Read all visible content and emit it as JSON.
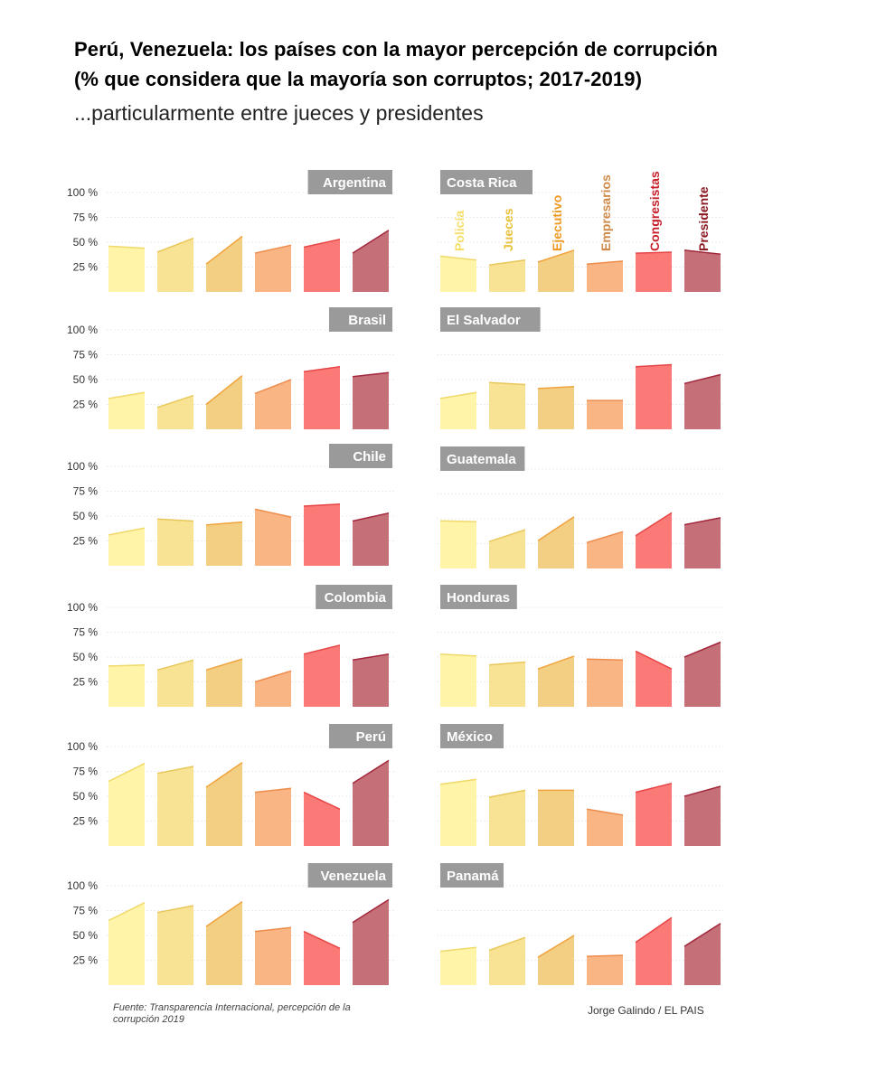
{
  "header": {
    "title_line1": "Perú, Venezuela: los países con la mayor percepción de corrupción",
    "title_line2": "(% que considera que la mayoría son corruptos; 2017-2019)",
    "subtitle": "...particularmente entre jueces y presidentes"
  },
  "footer": {
    "source_line1": "Fuente: Transparencia Internacional, percepción de la",
    "source_line2": "corrupción 2019",
    "credit": "Jorge Galindo / EL PAIS"
  },
  "colors": {
    "Policía": "#fff3a0",
    "Jueces": "#f7e08a",
    "Ejecutivo": "#f2cb78",
    "Empresarios": "#f9b07a",
    "Congresistas": "#fb6e6a",
    "Presidente": "#c0636e"
  },
  "line_colors": {
    "Policía": "#f0d96a",
    "Jueces": "#e8c75a",
    "Ejecutivo": "#f0a23c",
    "Empresarios": "#ee8c4c",
    "Congresistas": "#e64646",
    "Presidente": "#a2283c"
  },
  "label_colors": {
    "Policía": "#f5df6a",
    "Jueces": "#e9c23c",
    "Ejecutivo": "#ee9a22",
    "Empresarios": "#cf8a48",
    "Congresistas": "#c8202a",
    "Presidente": "#8c1a22"
  },
  "chart_data": {
    "type": "area",
    "title": "Perú, Venezuela: los países con la mayor percepción de corrupción (% que considera que la mayoría son corruptos; 2017-2019)",
    "x": [
      "2017",
      "2019"
    ],
    "ylim": [
      0,
      100
    ],
    "yticks": [
      "100 %",
      "75 %",
      "50 %",
      "25 %"
    ],
    "categories": [
      "Policía",
      "Jueces",
      "Ejecutivo",
      "Empresarios",
      "Congresistas",
      "Presidente"
    ],
    "countries": [
      {
        "name": "Argentina",
        "col": 0,
        "row": 0,
        "values": [
          [
            46,
            44
          ],
          [
            40,
            54
          ],
          [
            28,
            56
          ],
          [
            39,
            47
          ],
          [
            45,
            53
          ],
          [
            39,
            62
          ]
        ]
      },
      {
        "name": "Costa Rica",
        "col": 1,
        "row": 0,
        "values": [
          [
            36,
            32
          ],
          [
            27,
            32
          ],
          [
            30,
            42
          ],
          [
            28,
            31
          ],
          [
            39,
            40
          ],
          [
            42,
            38
          ]
        ]
      },
      {
        "name": "Brasil",
        "col": 0,
        "row": 1,
        "values": [
          [
            31,
            37
          ],
          [
            22,
            34
          ],
          [
            25,
            54
          ],
          [
            36,
            50
          ],
          [
            58,
            63
          ],
          [
            53,
            57
          ]
        ]
      },
      {
        "name": "El Salvador",
        "col": 1,
        "row": 1,
        "values": [
          [
            31,
            37
          ],
          [
            47,
            45
          ],
          [
            41,
            43
          ],
          [
            29,
            29
          ],
          [
            63,
            65
          ],
          [
            46,
            55
          ]
        ]
      },
      {
        "name": "Chile",
        "col": 0,
        "row": 2,
        "values": [
          [
            31,
            38
          ],
          [
            47,
            45
          ],
          [
            41,
            44
          ],
          [
            57,
            49
          ],
          [
            60,
            62
          ],
          [
            45,
            53
          ]
        ]
      },
      {
        "name": "Guatemala",
        "col": 1,
        "row": 2,
        "values": [
          [
            48,
            47
          ],
          [
            27,
            39
          ],
          [
            28,
            52
          ],
          [
            26,
            37
          ],
          [
            33,
            56
          ],
          [
            44,
            51
          ]
        ]
      },
      {
        "name": "Colombia",
        "col": 0,
        "row": 3,
        "values": [
          [
            41,
            42
          ],
          [
            37,
            47
          ],
          [
            37,
            48
          ],
          [
            25,
            36
          ],
          [
            53,
            62
          ],
          [
            47,
            53
          ]
        ]
      },
      {
        "name": "Honduras",
        "col": 1,
        "row": 3,
        "values": [
          [
            53,
            51
          ],
          [
            42,
            45
          ],
          [
            38,
            51
          ],
          [
            48,
            47
          ],
          [
            56,
            38
          ],
          [
            50,
            65
          ]
        ]
      },
      {
        "name": "Perú",
        "col": 0,
        "row": 4,
        "values": [
          [
            65,
            83
          ],
          [
            73,
            80
          ],
          [
            59,
            84
          ],
          [
            54,
            58
          ],
          [
            54,
            37
          ],
          [
            63,
            86
          ]
        ]
      },
      {
        "name": "México",
        "col": 1,
        "row": 4,
        "values": [
          [
            62,
            67
          ],
          [
            49,
            56
          ],
          [
            56,
            56
          ],
          [
            37,
            31
          ],
          [
            54,
            63
          ],
          [
            50,
            60
          ]
        ]
      },
      {
        "name": "Venezuela",
        "col": 0,
        "row": 5,
        "values": [
          [
            65,
            83
          ],
          [
            73,
            80
          ],
          [
            59,
            84
          ],
          [
            54,
            58
          ],
          [
            54,
            37
          ],
          [
            63,
            86
          ]
        ]
      },
      {
        "name": "Panamá",
        "col": 1,
        "row": 5,
        "values": [
          [
            34,
            38
          ],
          [
            35,
            48
          ],
          [
            28,
            50
          ],
          [
            29,
            30
          ],
          [
            43,
            68
          ],
          [
            39,
            62
          ]
        ]
      }
    ]
  }
}
